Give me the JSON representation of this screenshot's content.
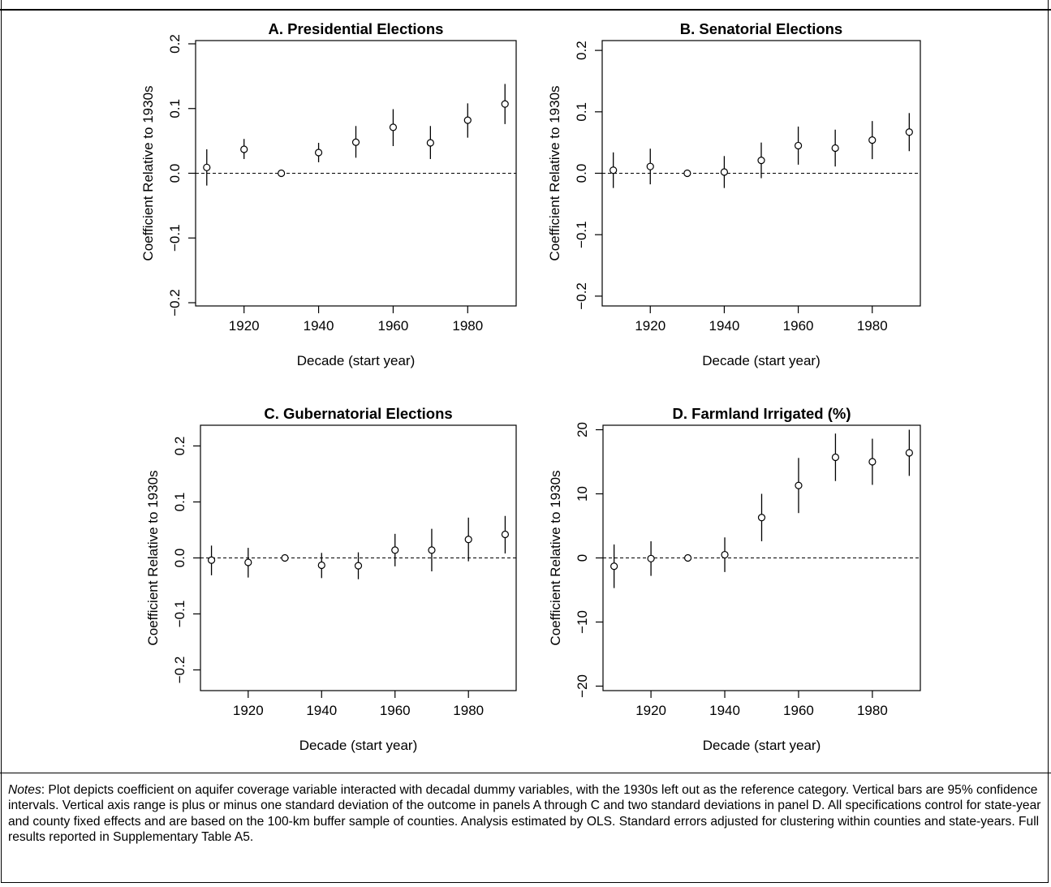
{
  "chart_data": [
    {
      "type": "scatter",
      "panel": "A",
      "title": "A. Presidential Elections",
      "xlabel": "Decade (start year)",
      "ylabel": "Coefficient Relative to 1930s",
      "xlim": [
        1907,
        1993
      ],
      "ylim": [
        -0.205,
        0.205
      ],
      "xticks": [
        1920,
        1940,
        1960,
        1980
      ],
      "xtick_labels": [
        "1920",
        "1940",
        "1960",
        "1980"
      ],
      "yticks": [
        -0.2,
        -0.1,
        0.0,
        0.1,
        0.2
      ],
      "ytick_labels": [
        "−0.2",
        "−0.1",
        "0.0",
        "0.1",
        "0.2"
      ],
      "series": [
        {
          "x": [
            1910,
            1920,
            1930,
            1940,
            1950,
            1960,
            1970,
            1980,
            1990
          ],
          "y": [
            0.009,
            0.037,
            0.0,
            0.032,
            0.048,
            0.071,
            0.047,
            0.082,
            0.107
          ],
          "ci_low": [
            -0.019,
            0.022,
            0.0,
            0.017,
            0.024,
            0.042,
            0.022,
            0.055,
            0.076
          ],
          "ci_high": [
            0.037,
            0.053,
            0.0,
            0.047,
            0.073,
            0.099,
            0.073,
            0.108,
            0.138
          ]
        }
      ],
      "reference_line_y": 0,
      "grid": false
    },
    {
      "type": "scatter",
      "panel": "B",
      "title": "B. Senatorial Elections",
      "xlabel": "Decade (start year)",
      "ylabel": "Coefficient Relative to 1930s",
      "xlim": [
        1907,
        1993
      ],
      "ylim": [
        -0.216,
        0.216
      ],
      "xticks": [
        1920,
        1940,
        1960,
        1980
      ],
      "xtick_labels": [
        "1920",
        "1940",
        "1960",
        "1980"
      ],
      "yticks": [
        -0.2,
        -0.1,
        0.0,
        0.1,
        0.2
      ],
      "ytick_labels": [
        "−0.2",
        "−0.1",
        "0.0",
        "0.1",
        "0.2"
      ],
      "series": [
        {
          "x": [
            1910,
            1920,
            1930,
            1940,
            1950,
            1960,
            1970,
            1980,
            1990
          ],
          "y": [
            0.005,
            0.011,
            0.0,
            0.002,
            0.021,
            0.045,
            0.041,
            0.054,
            0.067
          ],
          "ci_low": [
            -0.024,
            -0.018,
            0.0,
            -0.024,
            -0.008,
            0.014,
            0.011,
            0.023,
            0.036
          ],
          "ci_high": [
            0.034,
            0.04,
            0.0,
            0.028,
            0.05,
            0.076,
            0.071,
            0.085,
            0.098
          ]
        }
      ],
      "reference_line_y": 0,
      "grid": false
    },
    {
      "type": "scatter",
      "panel": "C",
      "title": "C. Gubernatorial Elections",
      "xlabel": "Decade (start year)",
      "ylabel": "Coefficient Relative to 1930s",
      "xlim": [
        1907,
        1993
      ],
      "ylim": [
        -0.237,
        0.237
      ],
      "xticks": [
        1920,
        1940,
        1960,
        1980
      ],
      "xtick_labels": [
        "1920",
        "1940",
        "1960",
        "1980"
      ],
      "yticks": [
        -0.2,
        -0.1,
        0.0,
        0.1,
        0.2
      ],
      "ytick_labels": [
        "−0.2",
        "−0.1",
        "0.0",
        "0.1",
        "0.2"
      ],
      "series": [
        {
          "x": [
            1910,
            1920,
            1930,
            1940,
            1950,
            1960,
            1970,
            1980,
            1990
          ],
          "y": [
            -0.004,
            -0.008,
            0.0,
            -0.013,
            -0.014,
            0.014,
            0.014,
            0.033,
            0.042
          ],
          "ci_low": [
            -0.031,
            -0.035,
            0.0,
            -0.036,
            -0.038,
            -0.015,
            -0.024,
            -0.006,
            0.008
          ],
          "ci_high": [
            0.022,
            0.018,
            0.0,
            0.009,
            0.01,
            0.043,
            0.052,
            0.072,
            0.075
          ]
        }
      ],
      "reference_line_y": 0,
      "grid": false
    },
    {
      "type": "scatter",
      "panel": "D",
      "title": "D. Farmland Irrigated (%)",
      "xlabel": "Decade (start year)",
      "ylabel": "Coefficient Relative to 1930s",
      "xlim": [
        1907,
        1993
      ],
      "ylim": [
        -20.7,
        20.7
      ],
      "xticks": [
        1920,
        1940,
        1960,
        1980
      ],
      "xtick_labels": [
        "1920",
        "1940",
        "1960",
        "1980"
      ],
      "yticks": [
        -20,
        -10,
        0,
        10,
        20
      ],
      "ytick_labels": [
        "−20",
        "−10",
        "0",
        "10",
        "20"
      ],
      "series": [
        {
          "x": [
            1910,
            1920,
            1930,
            1940,
            1950,
            1960,
            1970,
            1980,
            1990
          ],
          "y": [
            -1.3,
            -0.1,
            0.0,
            0.5,
            6.3,
            11.3,
            15.7,
            15.0,
            16.4
          ],
          "ci_low": [
            -4.7,
            -2.8,
            0.0,
            -2.2,
            2.6,
            7.0,
            12.0,
            11.4,
            12.8
          ],
          "ci_high": [
            2.1,
            2.6,
            0.0,
            3.2,
            10.0,
            15.6,
            19.4,
            18.6,
            20.0
          ]
        }
      ],
      "reference_line_y": 0,
      "grid": false
    }
  ],
  "notes": {
    "label": "Notes",
    "text": ": Plot depicts coefficient on aquifer coverage variable interacted with decadal dummy variables, with the 1930s left out as the reference category. Vertical bars are 95% confidence intervals. Vertical axis range is plus or minus one standard deviation of the outcome in panels A through C and two standard deviations in panel D. All specifications control for state-year and county fixed effects and are based on the 100-km buffer sample of counties. Analysis estimated by OLS. Standard errors adjusted for clustering within counties and state-years. Full results reported in Supplementary Table A5."
  }
}
